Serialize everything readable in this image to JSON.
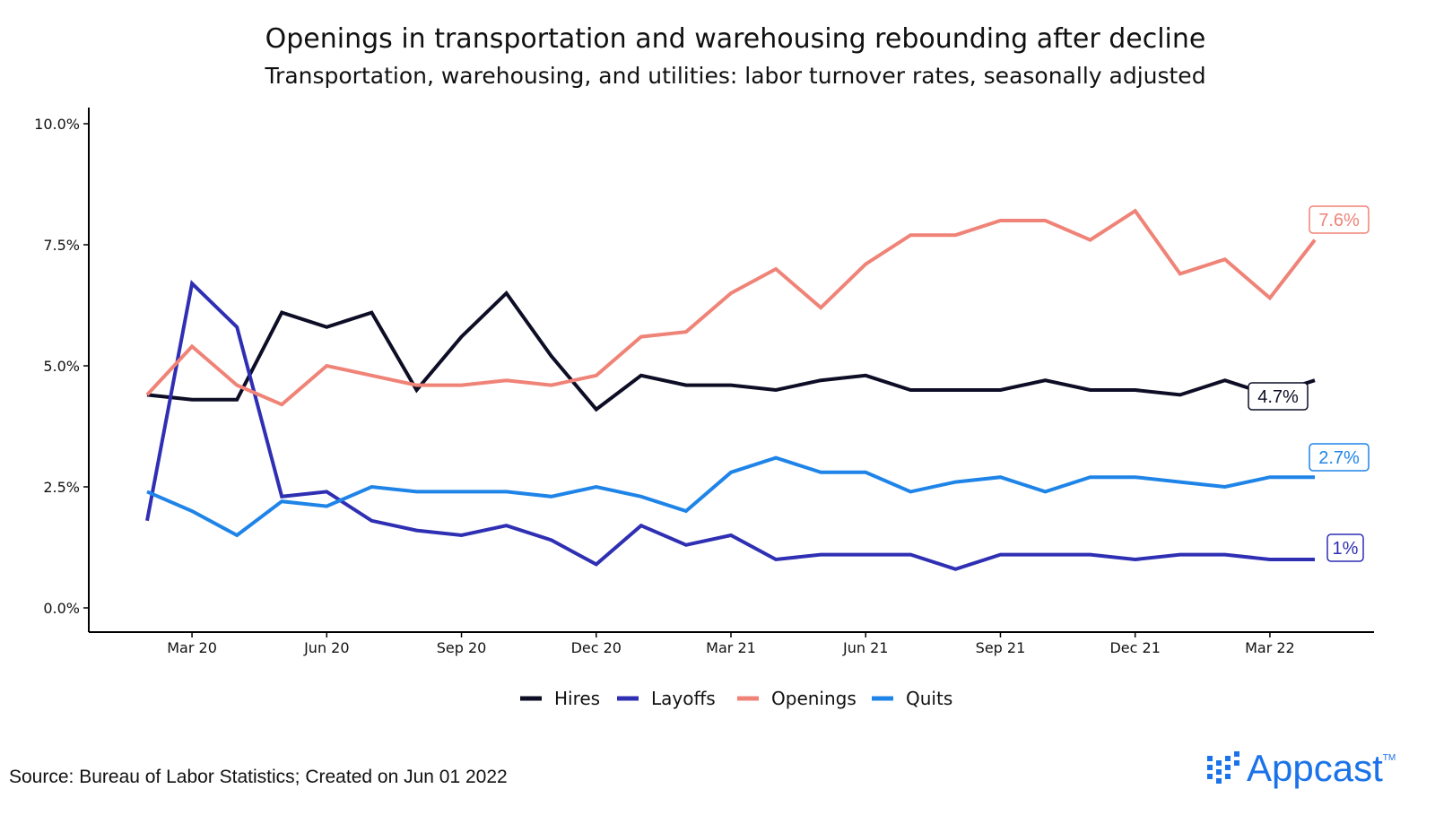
{
  "chart_data": {
    "type": "line",
    "title": "Openings in transportation and warehousing rebounding after decline",
    "subtitle": "Transportation, warehousing, and utilities: labor turnover rates, seasonally adjusted",
    "xlabel": "",
    "ylabel": "",
    "ylim": [
      0,
      10
    ],
    "y_ticks": [
      "0.0%",
      "2.5%",
      "5.0%",
      "7.5%",
      "10.0%"
    ],
    "y_tick_values": [
      0,
      2.5,
      5,
      7.5,
      10
    ],
    "x": [
      "Feb 20",
      "Mar 20",
      "Apr 20",
      "May 20",
      "Jun 20",
      "Jul 20",
      "Aug 20",
      "Sep 20",
      "Oct 20",
      "Nov 20",
      "Dec 20",
      "Jan 21",
      "Feb 21",
      "Mar 21",
      "Apr 21",
      "May 21",
      "Jun 21",
      "Jul 21",
      "Aug 21",
      "Sep 21",
      "Oct 21",
      "Nov 21",
      "Dec 21",
      "Jan 22",
      "Feb 22",
      "Mar 22",
      "Apr 22"
    ],
    "x_tick_labels": [
      "Mar 20",
      "Jun 20",
      "Sep 20",
      "Dec 20",
      "Mar 21",
      "Jun 21",
      "Sep 21",
      "Dec 21",
      "Mar 22"
    ],
    "x_tick_index": [
      1,
      4,
      7,
      10,
      13,
      16,
      19,
      22,
      25
    ],
    "series": [
      {
        "name": "Hires",
        "color": "#0d0d26",
        "values": [
          4.4,
          4.3,
          4.3,
          6.1,
          5.8,
          6.1,
          4.5,
          5.6,
          6.5,
          5.2,
          4.1,
          4.8,
          4.6,
          4.6,
          4.5,
          4.7,
          4.8,
          4.5,
          4.5,
          4.5,
          4.7,
          4.5,
          4.5,
          4.4,
          4.7,
          4.4,
          4.7
        ],
        "end_label": "4.7%"
      },
      {
        "name": "Layoffs",
        "color": "#2f2fb4",
        "values": [
          1.8,
          6.7,
          5.8,
          2.3,
          2.4,
          1.8,
          1.6,
          1.5,
          1.7,
          1.4,
          0.9,
          1.7,
          1.3,
          1.5,
          1.0,
          1.1,
          1.1,
          1.1,
          0.8,
          1.1,
          1.1,
          1.1,
          1.0,
          1.1,
          1.1,
          1.0,
          1.0
        ],
        "end_label": "1%"
      },
      {
        "name": "Openings",
        "color": "#f08377",
        "values": [
          4.4,
          5.4,
          4.6,
          4.2,
          5.0,
          4.8,
          4.6,
          4.6,
          4.7,
          4.6,
          4.8,
          5.6,
          5.7,
          6.5,
          7.0,
          6.2,
          7.1,
          7.7,
          7.7,
          8.0,
          8.0,
          7.6,
          8.2,
          6.9,
          7.2,
          6.4,
          7.6
        ],
        "end_label": "7.6%"
      },
      {
        "name": "Quits",
        "color": "#1f84e8",
        "values": [
          2.4,
          2.0,
          1.5,
          2.2,
          2.1,
          2.5,
          2.4,
          2.4,
          2.4,
          2.3,
          2.5,
          2.3,
          2.0,
          2.8,
          3.1,
          2.8,
          2.8,
          2.4,
          2.6,
          2.7,
          2.4,
          2.7,
          2.7,
          2.6,
          2.5,
          2.7,
          2.7
        ],
        "end_label": "2.7%"
      }
    ],
    "legend": "bottom"
  },
  "footer": {
    "source": "Source: Bureau of Labor Statistics; Created on Jun 01 2022",
    "brand": "Appcast",
    "brand_tm": "TM"
  }
}
